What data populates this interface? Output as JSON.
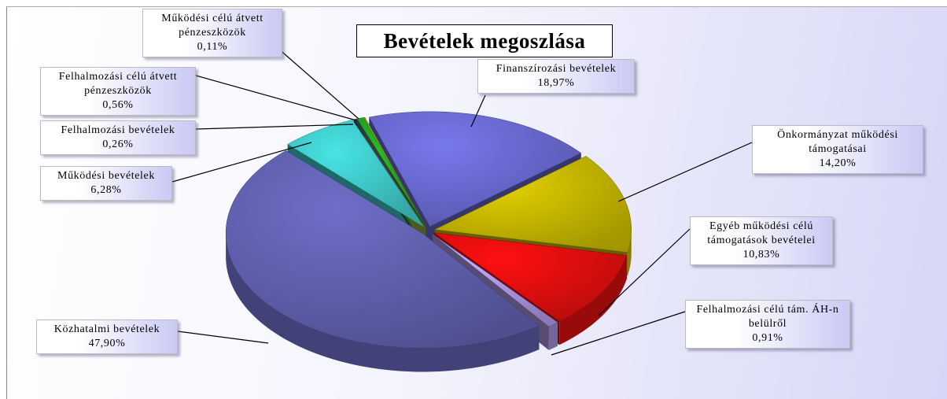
{
  "chart_data": {
    "type": "pie",
    "title": "Bevételek megoszlása",
    "categories": [
      "Finanszírozási bevételek",
      "Önkormányzat működési támogatásai",
      "Egyéb működési célú támogatások bevételei",
      "Felhalmozási célú tám. ÁH-n belülről",
      "Közhatalmi bevételek",
      "Működési bevételek",
      "Felhalmozási bevételek",
      "Felhalmozási célú átvett pénzeszközök",
      "Működési célú átvett pénzeszközök"
    ],
    "values": [
      18.97,
      14.2,
      10.83,
      0.91,
      47.9,
      6.28,
      0.26,
      0.56,
      0.11
    ],
    "value_labels": [
      "18,97%",
      "14,20%",
      "10,83%",
      "0,91%",
      "47,90%",
      "6,28%",
      "0,26%",
      "0,56%",
      "0,11%"
    ],
    "colors": [
      "#7878ee",
      "#e2d000",
      "#ff1010",
      "#c4a8ff",
      "#6e6ec8",
      "#48e4e4",
      "#3a3a5c",
      "#22c022",
      "#a8c840"
    ]
  }
}
